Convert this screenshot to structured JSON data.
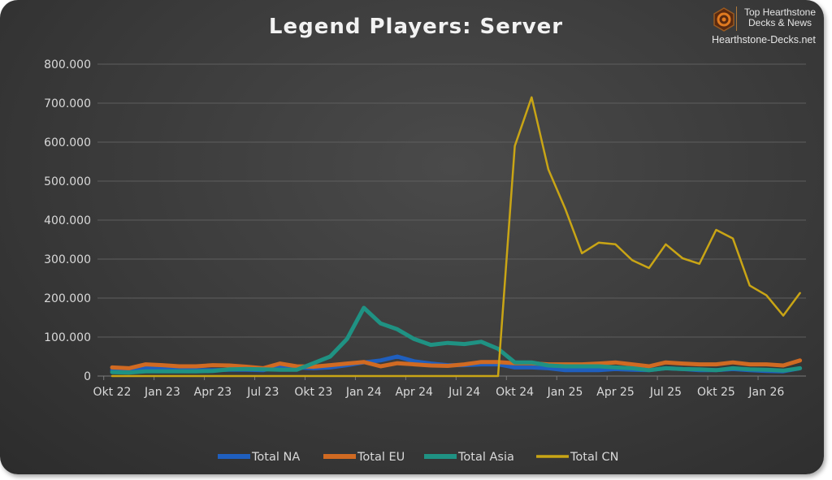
{
  "logo": {
    "line1": "Top Hearthstone",
    "line2": "Decks & News",
    "site": "Hearthstone-Decks.net"
  },
  "chart_data": {
    "type": "line",
    "title": "Legend Players: Server",
    "xlabel": "",
    "ylabel": "",
    "ylim": [
      0,
      800000
    ],
    "yticks": [
      0,
      100000,
      200000,
      300000,
      400000,
      500000,
      600000,
      700000,
      800000
    ],
    "ytick_labels": [
      "0",
      "100.000",
      "200.000",
      "300.000",
      "400.000",
      "500.000",
      "600.000",
      "700.000",
      "800.000"
    ],
    "x": [
      "Okt 22",
      "Nov 22",
      "Dez 22",
      "Jan 23",
      "Feb 23",
      "Mär 23",
      "Apr 23",
      "Mai 23",
      "Jun 23",
      "Jul 23",
      "Aug 23",
      "Sep 23",
      "Okt 23",
      "Nov 23",
      "Dez 23",
      "Jan 24",
      "Feb 24",
      "Mär 24",
      "Apr 24",
      "Mai 24",
      "Jun 24",
      "Jul 24",
      "Aug 24",
      "Sep 24",
      "Okt 24",
      "Nov 24",
      "Dez 24",
      "Jan 25",
      "Feb 25",
      "Mär 25",
      "Apr 25",
      "Mai 25",
      "Jun 25",
      "Jul 25",
      "Aug 25",
      "Sep 25",
      "Okt 25",
      "Nov 25",
      "Dez 25",
      "Jan 26",
      "Feb 26",
      "Mär 26"
    ],
    "xtick_labels": [
      "Okt 22",
      "Jan 23",
      "Apr 23",
      "Jul 23",
      "Okt 23",
      "Jan 24",
      "Apr 24",
      "Jul 24",
      "Okt 24",
      "Jan 25",
      "Apr 25",
      "Jul 25",
      "Okt 25",
      "Jan 26"
    ],
    "grid": true,
    "legend": "bottom",
    "series": [
      {
        "name": "Total NA",
        "color": "#1f5fbf",
        "width": 5,
        "values": [
          15000,
          15000,
          20000,
          18000,
          15000,
          15000,
          15000,
          16000,
          16000,
          15000,
          25000,
          22000,
          20000,
          22000,
          28000,
          35000,
          40000,
          50000,
          38000,
          32000,
          28000,
          28000,
          30000,
          30000,
          22000,
          22000,
          20000,
          15000,
          15000,
          15000,
          18000,
          16000,
          15000,
          20000,
          18000,
          15000,
          15000,
          18000,
          15000,
          13000,
          12000,
          20000
        ]
      },
      {
        "name": "Total EU",
        "color": "#d06a22",
        "width": 5,
        "values": [
          22000,
          20000,
          30000,
          28000,
          25000,
          25000,
          28000,
          27000,
          24000,
          20000,
          32000,
          25000,
          24000,
          28000,
          32000,
          36000,
          25000,
          33000,
          30000,
          27000,
          26000,
          30000,
          36000,
          36000,
          33000,
          33000,
          30000,
          30000,
          30000,
          32000,
          35000,
          30000,
          25000,
          35000,
          32000,
          30000,
          30000,
          35000,
          30000,
          30000,
          27000,
          40000
        ]
      },
      {
        "name": "Total Asia",
        "color": "#1f9283",
        "width": 5,
        "values": [
          10000,
          9000,
          12000,
          12000,
          12000,
          12000,
          13000,
          17000,
          18000,
          17000,
          16000,
          16000,
          33000,
          50000,
          95000,
          175000,
          135000,
          120000,
          95000,
          80000,
          85000,
          82000,
          88000,
          70000,
          35000,
          35000,
          27000,
          25000,
          25000,
          25000,
          22000,
          20000,
          15000,
          20000,
          18000,
          17000,
          15000,
          20000,
          17000,
          16000,
          14000,
          20000
        ]
      },
      {
        "name": "Total CN",
        "color": "#c9a515",
        "width": 2.5,
        "values": [
          0,
          0,
          0,
          0,
          0,
          0,
          0,
          0,
          0,
          0,
          0,
          0,
          0,
          0,
          0,
          0,
          0,
          0,
          0,
          0,
          0,
          0,
          0,
          0,
          590000,
          715000,
          530000,
          430000,
          315000,
          342000,
          338000,
          297000,
          277000,
          338000,
          302000,
          288000,
          375000,
          353000,
          232000,
          207000,
          155000,
          213000
        ]
      }
    ]
  }
}
